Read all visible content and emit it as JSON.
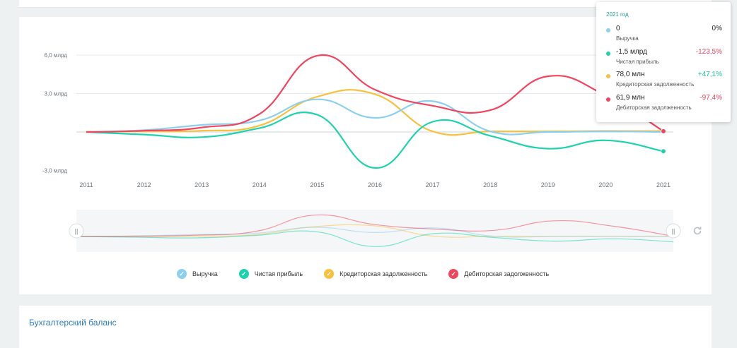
{
  "chart_data": {
    "type": "line",
    "x": [
      "2011",
      "2012",
      "2013",
      "2014",
      "2015",
      "2016",
      "2017",
      "2018",
      "2019",
      "2020",
      "2021"
    ],
    "ylim": [
      -3.0,
      7.0
    ],
    "y_ticks": [
      {
        "value": 6.0,
        "label": "6,0 млрд"
      },
      {
        "value": 3.0,
        "label": "3,0 млрд"
      },
      {
        "value": 0,
        "label": ""
      },
      {
        "value": -3.0,
        "label": "-3,0 млрд"
      }
    ],
    "grid": true,
    "legend_position": "bottom",
    "series": [
      {
        "name": "Выручка",
        "color": "#8ccff0",
        "values": [
          0,
          0.15,
          0.55,
          0.9,
          2.55,
          1.1,
          2.4,
          0.05,
          0.0,
          0.05,
          0
        ]
      },
      {
        "name": "Чистая прибыль",
        "color": "#1cd3ae",
        "values": [
          0,
          -0.2,
          -0.4,
          0.3,
          1.35,
          -2.8,
          0.8,
          -0.3,
          -1.3,
          -0.65,
          -1.5
        ]
      },
      {
        "name": "Кредиторская задолженность",
        "color": "#f7c13f",
        "values": [
          0,
          0.05,
          0.1,
          0.5,
          2.75,
          2.95,
          0.05,
          0.05,
          0.05,
          0.08,
          0.078
        ]
      },
      {
        "name": "Дебиторская задолженность",
        "color": "#f2445f",
        "values": [
          0,
          0.1,
          0.35,
          1.4,
          5.95,
          3.3,
          2.05,
          1.7,
          4.35,
          2.85,
          0.062
        ]
      }
    ]
  },
  "tooltip": {
    "year": "2021 год",
    "rows": [
      {
        "value": "0",
        "change": "0%",
        "label": "Выручка",
        "color": "#8ccff0",
        "change_color": "#222222"
      },
      {
        "value": "-1,5 млрд",
        "change": "-123,5%",
        "label": "Чистая прибыль",
        "color": "#1cd3ae",
        "change_color": "#e5455e"
      },
      {
        "value": "78,0 млн",
        "change": "+47,1%",
        "label": "Кредиторская задолженность",
        "color": "#f7c13f",
        "change_color": "#1cc39e"
      },
      {
        "value": "61,9 млн",
        "change": "-97,4%",
        "label": "Дебиторская задолженность",
        "color": "#f2445f",
        "change_color": "#e5455e"
      }
    ]
  },
  "legend": [
    {
      "label": "Выручка",
      "color": "#8ccff0"
    },
    {
      "label": "Чистая прибыль",
      "color": "#1cd3ae"
    },
    {
      "label": "Кредиторская задолженность",
      "color": "#f7c13f"
    },
    {
      "label": "Дебиторская задолженность",
      "color": "#f2445f"
    }
  ],
  "navigator": {
    "left_handle": "||",
    "right_handle": "||"
  },
  "balance": {
    "title": "Бухгалтерский баланс"
  },
  "icons": {
    "check": "check-icon",
    "reset": "reset-zoom-icon"
  }
}
